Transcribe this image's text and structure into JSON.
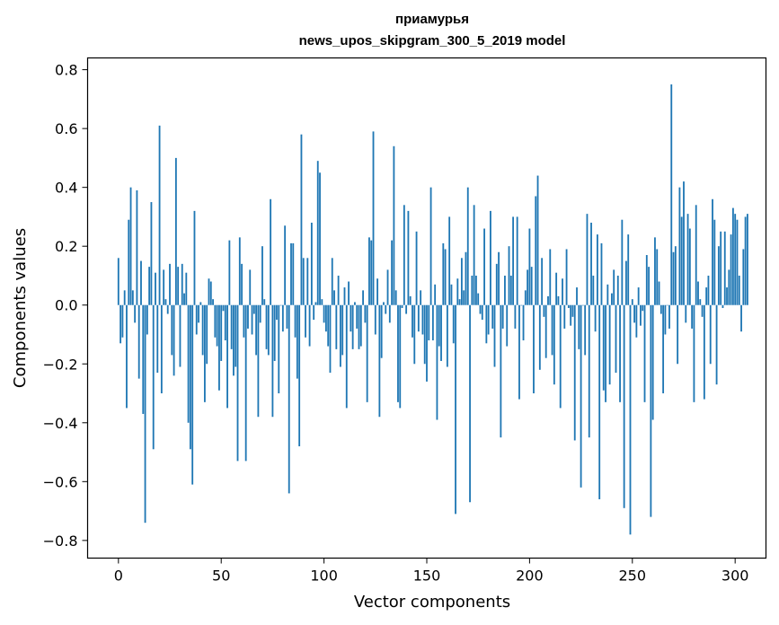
{
  "chart_data": {
    "type": "bar",
    "title": "приамурья",
    "subtitle": "news_upos_skipgram_300_5_2019 model",
    "xlabel": "Vector components",
    "ylabel": "Components values",
    "xlim": [
      -15,
      315
    ],
    "ylim": [
      -0.86,
      0.84
    ],
    "xticks": [
      0,
      50,
      100,
      150,
      200,
      250,
      300
    ],
    "xtick_labels": [
      "0",
      "50",
      "100",
      "150",
      "200",
      "250",
      "300"
    ],
    "yticks": [
      -0.8,
      -0.6,
      -0.4,
      -0.2,
      0.0,
      0.2,
      0.4,
      0.6,
      0.8
    ],
    "ytick_labels": [
      "−0.8",
      "−0.6",
      "−0.4",
      "−0.2",
      "0.0",
      "0.2",
      "0.4",
      "0.6",
      "0.8"
    ],
    "bar_color": "#1f77b4",
    "grid": false,
    "values": [
      0.16,
      -0.13,
      -0.11,
      0.05,
      -0.35,
      0.29,
      0.4,
      0.05,
      -0.06,
      0.39,
      -0.25,
      0.15,
      -0.37,
      -0.74,
      -0.1,
      0.13,
      0.35,
      -0.49,
      0.11,
      -0.23,
      0.61,
      -0.3,
      0.12,
      0.02,
      -0.03,
      0.14,
      -0.17,
      -0.24,
      0.5,
      0.13,
      -0.21,
      0.14,
      0.04,
      0.11,
      -0.4,
      -0.49,
      -0.61,
      0.32,
      -0.1,
      -0.06,
      0.01,
      -0.17,
      -0.33,
      -0.2,
      0.09,
      0.08,
      0.02,
      -0.11,
      -0.14,
      -0.29,
      -0.19,
      -0.02,
      -0.12,
      -0.35,
      0.22,
      -0.15,
      -0.24,
      -0.21,
      -0.53,
      0.23,
      0.14,
      -0.11,
      -0.53,
      -0.08,
      0.12,
      -0.1,
      -0.03,
      -0.17,
      -0.38,
      -0.06,
      0.2,
      0.02,
      -0.15,
      -0.17,
      0.36,
      -0.38,
      -0.19,
      -0.05,
      -0.3,
      0.0,
      -0.09,
      0.27,
      -0.08,
      -0.64,
      0.21,
      0.21,
      -0.11,
      -0.25,
      -0.48,
      0.58,
      0.16,
      -0.11,
      0.16,
      -0.14,
      0.28,
      -0.05,
      0.01,
      0.49,
      0.45,
      0.02,
      -0.06,
      -0.09,
      -0.14,
      -0.23,
      0.16,
      0.05,
      -0.15,
      0.1,
      -0.21,
      -0.17,
      0.06,
      -0.35,
      0.08,
      -0.09,
      -0.15,
      0.01,
      -0.08,
      -0.15,
      -0.14,
      0.05,
      -0.06,
      -0.33,
      0.23,
      0.22,
      0.59,
      -0.1,
      0.09,
      -0.38,
      -0.18,
      0.01,
      -0.03,
      0.12,
      -0.06,
      0.22,
      0.54,
      0.05,
      -0.33,
      -0.35,
      -0.01,
      0.34,
      -0.03,
      0.32,
      0.03,
      -0.11,
      -0.2,
      0.25,
      -0.09,
      0.05,
      -0.1,
      -0.2,
      -0.26,
      -0.12,
      0.4,
      -0.12,
      0.07,
      -0.39,
      -0.14,
      -0.19,
      0.21,
      0.19,
      -0.21,
      0.3,
      0.07,
      -0.13,
      -0.71,
      0.09,
      0.02,
      0.16,
      0.05,
      0.18,
      0.4,
      -0.67,
      0.1,
      0.34,
      0.1,
      0.04,
      -0.03,
      -0.05,
      0.26,
      -0.13,
      -0.1,
      0.32,
      -0.08,
      -0.21,
      0.14,
      0.18,
      -0.45,
      -0.08,
      0.1,
      -0.14,
      0.2,
      0.1,
      0.3,
      -0.08,
      0.3,
      -0.32,
      0.0,
      -0.12,
      0.05,
      0.12,
      0.26,
      0.13,
      -0.3,
      0.37,
      0.44,
      -0.22,
      0.16,
      -0.04,
      -0.18,
      0.03,
      0.19,
      -0.17,
      -0.27,
      0.11,
      0.03,
      -0.35,
      0.09,
      -0.08,
      0.19,
      -0.01,
      -0.07,
      -0.04,
      -0.46,
      0.06,
      -0.15,
      -0.62,
      0.0,
      -0.17,
      0.31,
      -0.45,
      0.28,
      0.1,
      -0.09,
      0.24,
      -0.66,
      0.21,
      -0.29,
      -0.33,
      0.07,
      -0.27,
      0.04,
      0.12,
      -0.23,
      0.1,
      -0.33,
      0.29,
      -0.69,
      0.15,
      0.24,
      -0.78,
      0.02,
      -0.06,
      -0.11,
      0.06,
      -0.07,
      -0.02,
      -0.33,
      0.17,
      0.13,
      -0.72,
      -0.39,
      0.23,
      0.19,
      0.08,
      -0.03,
      -0.3,
      -0.1,
      0.0,
      -0.08,
      0.75,
      0.18,
      0.2,
      -0.2,
      0.4,
      0.3,
      0.42,
      -0.06,
      0.31,
      0.26,
      -0.08,
      -0.33,
      0.34,
      0.08,
      0.02,
      -0.04,
      -0.32,
      0.06,
      0.1,
      -0.2,
      0.36,
      0.29,
      -0.27,
      0.2,
      0.25,
      -0.01,
      0.25,
      0.06,
      0.12,
      0.24,
      0.33,
      0.31,
      0.29,
      0.1,
      -0.09,
      0.19,
      0.3,
      0.31
    ]
  }
}
